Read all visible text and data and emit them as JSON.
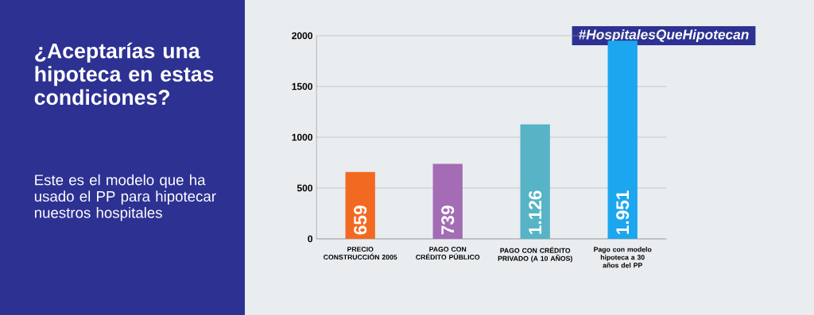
{
  "chart_data": {
    "type": "bar",
    "title": "¿Aceptarías una hipoteca en estas condiciones?",
    "subtitle": "Este es el modelo que ha usado el PP para hipotecar nuestros hospitales",
    "annotations": [
      "#HospitalesQueHipotecan"
    ],
    "categories": [
      "PRECIO CONSTRUCCIÓN 2005",
      "PAGO CON CRÉDITO PÚBLICO",
      "PAGO CON CRÉDITO PRIVADO (A 10 AÑOS)",
      "Pago con modelo hipoteca a 30 años del PP"
    ],
    "values": [
      659,
      739,
      1126,
      1951
    ],
    "value_labels": [
      "659",
      "739",
      "1.126",
      "1.951"
    ],
    "colors": [
      "#f26a21",
      "#a46cb5",
      "#56b4c6",
      "#1ba6ef"
    ],
    "ylim": [
      0,
      2000
    ],
    "yticks": [
      0,
      500,
      1000,
      1500,
      2000
    ],
    "grid": "y"
  }
}
